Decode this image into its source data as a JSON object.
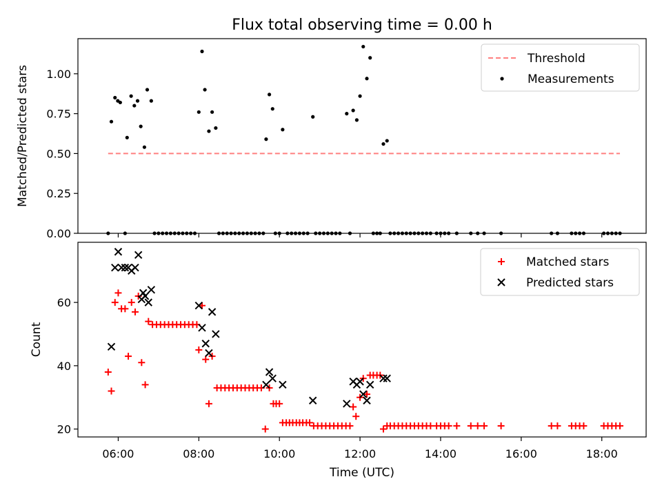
{
  "title": "Flux total observing time = 0.00 h",
  "colors": {
    "threshold": "#ff7f7f",
    "measurements": "#000000",
    "matched": "#ff0000",
    "predicted": "#000000"
  },
  "chart_data": [
    {
      "type": "scatter",
      "panel": "top",
      "ylabel": "Matched/Predicted stars",
      "xlim_hours": [
        5.0,
        19.1
      ],
      "ylim": [
        0.0,
        1.22
      ],
      "yticks": [
        "0.00",
        "0.25",
        "0.50",
        "0.75",
        "1.00"
      ],
      "legend_position": "upper-right",
      "threshold": {
        "name": "Threshold",
        "value": 0.5,
        "x_range_hours": [
          5.75,
          18.45
        ]
      },
      "measurements": {
        "name": "Measurements",
        "points": [
          [
            5.83,
            0.7
          ],
          [
            5.92,
            0.85
          ],
          [
            5.99,
            0.83
          ],
          [
            6.05,
            0.82
          ],
          [
            6.22,
            0.6
          ],
          [
            6.32,
            0.86
          ],
          [
            6.4,
            0.8
          ],
          [
            6.48,
            0.83
          ],
          [
            6.56,
            0.67
          ],
          [
            6.65,
            0.54
          ],
          [
            6.72,
            0.9
          ],
          [
            6.82,
            0.83
          ],
          [
            8.0,
            0.76
          ],
          [
            8.08,
            1.14
          ],
          [
            8.15,
            0.9
          ],
          [
            8.25,
            0.64
          ],
          [
            8.33,
            0.76
          ],
          [
            8.42,
            0.66
          ],
          [
            9.67,
            0.59
          ],
          [
            9.75,
            0.87
          ],
          [
            9.83,
            0.78
          ],
          [
            10.08,
            0.65
          ],
          [
            10.83,
            0.73
          ],
          [
            11.67,
            0.75
          ],
          [
            11.83,
            0.77
          ],
          [
            11.92,
            0.71
          ],
          [
            12.0,
            0.86
          ],
          [
            12.08,
            1.17
          ],
          [
            12.17,
            0.97
          ],
          [
            12.25,
            1.1
          ],
          [
            12.58,
            0.56
          ],
          [
            12.67,
            0.58
          ],
          [
            5.75,
            0
          ],
          [
            6.17,
            0
          ],
          [
            6.9,
            0
          ],
          [
            7.0,
            0
          ],
          [
            7.1,
            0
          ],
          [
            7.2,
            0
          ],
          [
            7.3,
            0
          ],
          [
            7.4,
            0
          ],
          [
            7.5,
            0
          ],
          [
            7.6,
            0
          ],
          [
            7.7,
            0
          ],
          [
            7.8,
            0
          ],
          [
            7.9,
            0
          ],
          [
            8.5,
            0
          ],
          [
            8.6,
            0
          ],
          [
            8.7,
            0
          ],
          [
            8.8,
            0
          ],
          [
            8.9,
            0
          ],
          [
            9.0,
            0
          ],
          [
            9.1,
            0
          ],
          [
            9.2,
            0
          ],
          [
            9.3,
            0
          ],
          [
            9.4,
            0
          ],
          [
            9.5,
            0
          ],
          [
            9.6,
            0
          ],
          [
            9.9,
            0
          ],
          [
            10.0,
            0
          ],
          [
            10.2,
            0
          ],
          [
            10.3,
            0
          ],
          [
            10.4,
            0
          ],
          [
            10.5,
            0
          ],
          [
            10.6,
            0
          ],
          [
            10.7,
            0
          ],
          [
            10.9,
            0
          ],
          [
            11.0,
            0
          ],
          [
            11.1,
            0
          ],
          [
            11.2,
            0
          ],
          [
            11.3,
            0
          ],
          [
            11.4,
            0
          ],
          [
            11.5,
            0
          ],
          [
            11.75,
            0
          ],
          [
            12.33,
            0
          ],
          [
            12.42,
            0
          ],
          [
            12.5,
            0
          ],
          [
            12.75,
            0
          ],
          [
            12.85,
            0
          ],
          [
            12.95,
            0
          ],
          [
            13.05,
            0
          ],
          [
            13.15,
            0
          ],
          [
            13.25,
            0
          ],
          [
            13.35,
            0
          ],
          [
            13.45,
            0
          ],
          [
            13.55,
            0
          ],
          [
            13.65,
            0
          ],
          [
            13.75,
            0
          ],
          [
            13.9,
            0
          ],
          [
            14.0,
            0
          ],
          [
            14.1,
            0
          ],
          [
            14.2,
            0
          ],
          [
            14.4,
            0
          ],
          [
            14.75,
            0
          ],
          [
            14.92,
            0
          ],
          [
            15.08,
            0
          ],
          [
            15.5,
            0
          ],
          [
            16.75,
            0
          ],
          [
            16.9,
            0
          ],
          [
            17.25,
            0
          ],
          [
            17.35,
            0
          ],
          [
            17.45,
            0
          ],
          [
            17.55,
            0
          ],
          [
            18.05,
            0
          ],
          [
            18.15,
            0
          ],
          [
            18.25,
            0
          ],
          [
            18.35,
            0
          ],
          [
            18.45,
            0
          ]
        ]
      }
    },
    {
      "type": "scatter",
      "panel": "bottom",
      "xlabel": "Time (UTC)",
      "ylabel": "Count",
      "xlim_hours": [
        5.0,
        19.1
      ],
      "ylim": [
        17.5,
        79
      ],
      "yticks": [
        "20",
        "40",
        "60"
      ],
      "xticks": [
        "06:00",
        "08:00",
        "10:00",
        "12:00",
        "14:00",
        "16:00",
        "18:00"
      ],
      "legend_position": "upper-right",
      "matched": {
        "name": "Matched stars",
        "points": [
          [
            5.75,
            38
          ],
          [
            5.83,
            32
          ],
          [
            5.92,
            60
          ],
          [
            6.0,
            63
          ],
          [
            6.08,
            58
          ],
          [
            6.17,
            58
          ],
          [
            6.25,
            43
          ],
          [
            6.33,
            60
          ],
          [
            6.42,
            57
          ],
          [
            6.5,
            62
          ],
          [
            6.58,
            41
          ],
          [
            6.67,
            34
          ],
          [
            6.75,
            54
          ],
          [
            6.85,
            53
          ],
          [
            6.95,
            53
          ],
          [
            7.05,
            53
          ],
          [
            7.15,
            53
          ],
          [
            7.25,
            53
          ],
          [
            7.35,
            53
          ],
          [
            7.45,
            53
          ],
          [
            7.55,
            53
          ],
          [
            7.65,
            53
          ],
          [
            7.75,
            53
          ],
          [
            7.85,
            53
          ],
          [
            7.95,
            53
          ],
          [
            8.0,
            45
          ],
          [
            8.08,
            59
          ],
          [
            8.17,
            42
          ],
          [
            8.25,
            28
          ],
          [
            8.33,
            43
          ],
          [
            8.45,
            33
          ],
          [
            8.55,
            33
          ],
          [
            8.65,
            33
          ],
          [
            8.75,
            33
          ],
          [
            8.85,
            33
          ],
          [
            8.95,
            33
          ],
          [
            9.05,
            33
          ],
          [
            9.15,
            33
          ],
          [
            9.25,
            33
          ],
          [
            9.35,
            33
          ],
          [
            9.45,
            33
          ],
          [
            9.55,
            33
          ],
          [
            9.65,
            20
          ],
          [
            9.75,
            33
          ],
          [
            9.85,
            28
          ],
          [
            9.92,
            28
          ],
          [
            10.0,
            28
          ],
          [
            10.08,
            22
          ],
          [
            10.17,
            22
          ],
          [
            10.25,
            22
          ],
          [
            10.33,
            22
          ],
          [
            10.42,
            22
          ],
          [
            10.5,
            22
          ],
          [
            10.58,
            22
          ],
          [
            10.67,
            22
          ],
          [
            10.75,
            22
          ],
          [
            10.85,
            21
          ],
          [
            10.95,
            21
          ],
          [
            11.05,
            21
          ],
          [
            11.15,
            21
          ],
          [
            11.25,
            21
          ],
          [
            11.35,
            21
          ],
          [
            11.45,
            21
          ],
          [
            11.55,
            21
          ],
          [
            11.65,
            21
          ],
          [
            11.75,
            21
          ],
          [
            11.83,
            27
          ],
          [
            11.9,
            24
          ],
          [
            12.0,
            30
          ],
          [
            12.08,
            36
          ],
          [
            12.17,
            31
          ],
          [
            12.25,
            37
          ],
          [
            12.33,
            37
          ],
          [
            12.42,
            37
          ],
          [
            12.5,
            37
          ],
          [
            12.58,
            20
          ],
          [
            12.67,
            21
          ],
          [
            12.75,
            21
          ],
          [
            12.85,
            21
          ],
          [
            12.95,
            21
          ],
          [
            13.05,
            21
          ],
          [
            13.15,
            21
          ],
          [
            13.25,
            21
          ],
          [
            13.35,
            21
          ],
          [
            13.45,
            21
          ],
          [
            13.55,
            21
          ],
          [
            13.65,
            21
          ],
          [
            13.75,
            21
          ],
          [
            13.9,
            21
          ],
          [
            14.0,
            21
          ],
          [
            14.1,
            21
          ],
          [
            14.2,
            21
          ],
          [
            14.4,
            21
          ],
          [
            14.75,
            21
          ],
          [
            14.92,
            21
          ],
          [
            15.08,
            21
          ],
          [
            15.5,
            21
          ],
          [
            16.75,
            21
          ],
          [
            16.9,
            21
          ],
          [
            17.25,
            21
          ],
          [
            17.35,
            21
          ],
          [
            17.45,
            21
          ],
          [
            17.55,
            21
          ],
          [
            18.05,
            21
          ],
          [
            18.15,
            21
          ],
          [
            18.25,
            21
          ],
          [
            18.35,
            21
          ],
          [
            18.45,
            21
          ]
        ]
      },
      "predicted": {
        "name": "Predicted stars",
        "points": [
          [
            5.83,
            46
          ],
          [
            5.92,
            71
          ],
          [
            6.0,
            76
          ],
          [
            6.08,
            71
          ],
          [
            6.17,
            71
          ],
          [
            6.25,
            71
          ],
          [
            6.33,
            70
          ],
          [
            6.42,
            71
          ],
          [
            6.5,
            75
          ],
          [
            6.58,
            61
          ],
          [
            6.62,
            63
          ],
          [
            6.67,
            62
          ],
          [
            6.75,
            60
          ],
          [
            6.82,
            64
          ],
          [
            8.0,
            59
          ],
          [
            8.08,
            52
          ],
          [
            8.17,
            47
          ],
          [
            8.25,
            44
          ],
          [
            8.33,
            57
          ],
          [
            8.42,
            50
          ],
          [
            9.67,
            34
          ],
          [
            9.75,
            38
          ],
          [
            9.83,
            36
          ],
          [
            10.08,
            34
          ],
          [
            10.83,
            29
          ],
          [
            11.67,
            28
          ],
          [
            11.83,
            35
          ],
          [
            11.92,
            34
          ],
          [
            12.0,
            35
          ],
          [
            12.08,
            31
          ],
          [
            12.17,
            29
          ],
          [
            12.25,
            34
          ],
          [
            12.58,
            36
          ],
          [
            12.67,
            36
          ]
        ]
      }
    }
  ]
}
